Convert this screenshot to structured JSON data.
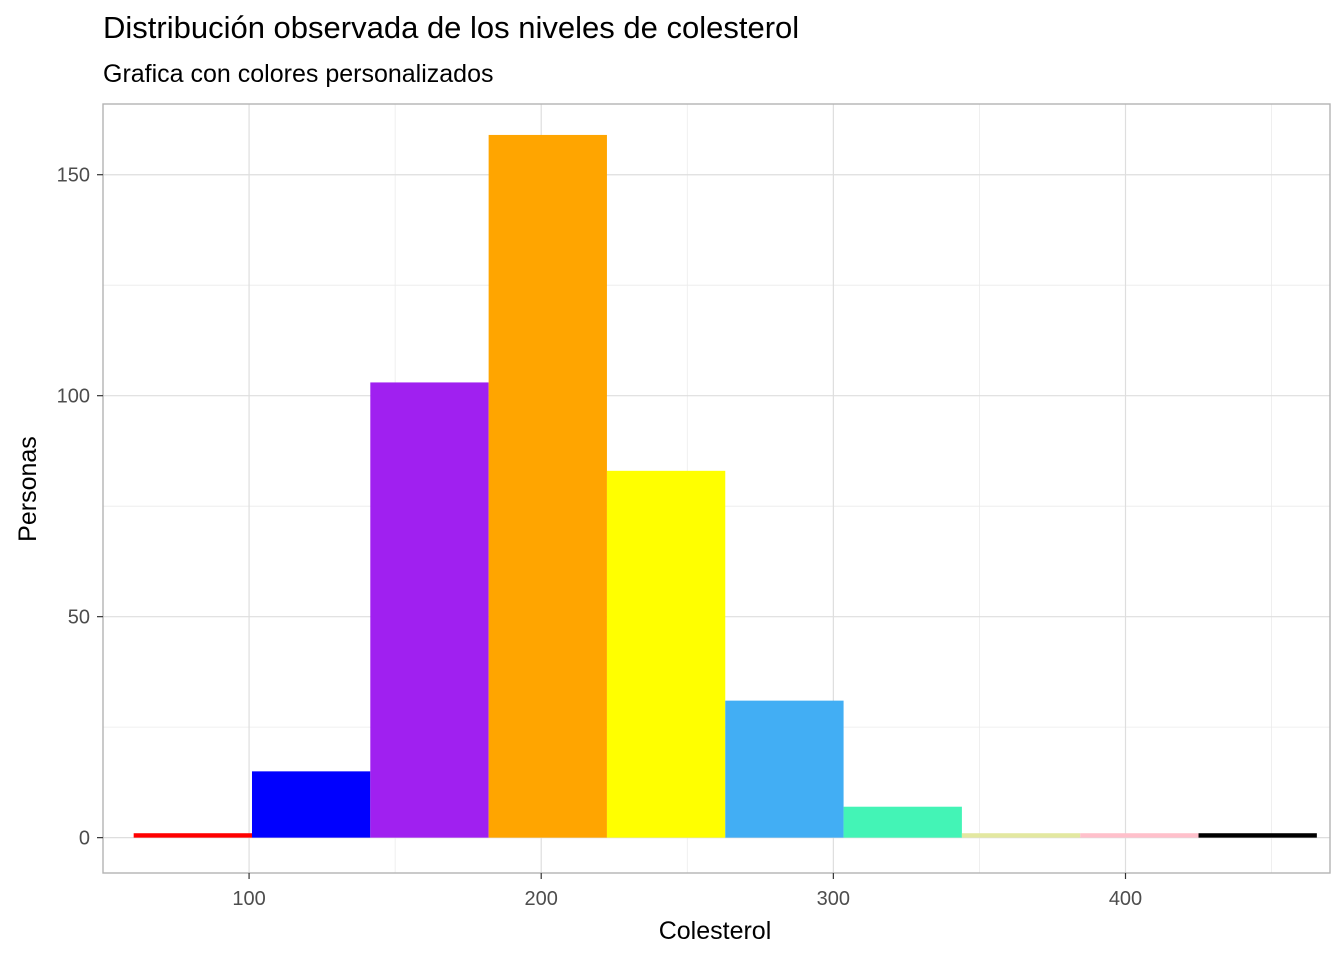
{
  "chart_data": {
    "type": "bar",
    "title": "Distribución observada de los niveles de colesterol",
    "subtitle": "Grafica con colores personalizados",
    "xlabel": "Colesterol",
    "ylabel": "Personas",
    "xlim": [
      50,
      470
    ],
    "ylim": [
      -8,
      166
    ],
    "x_ticks": [
      100,
      200,
      300,
      400
    ],
    "x_tick_labels": [
      "100",
      "200",
      "300",
      "400"
    ],
    "y_ticks": [
      0,
      50,
      100,
      150
    ],
    "y_tick_labels": [
      "0",
      "50",
      "100",
      "150"
    ],
    "x_minor_grid": [
      50,
      150,
      250,
      350,
      450
    ],
    "y_minor_grid": [
      25,
      75,
      125
    ],
    "grid": true,
    "bins": [
      {
        "x0": 60.5,
        "x1": 101,
        "value": 1,
        "color": "#FF0000"
      },
      {
        "x0": 101,
        "x1": 141.5,
        "value": 15,
        "color": "#0000FF"
      },
      {
        "x0": 141.5,
        "x1": 182,
        "value": 103,
        "color": "#A020F0"
      },
      {
        "x0": 182,
        "x1": 222.5,
        "value": 159,
        "color": "#FFA500"
      },
      {
        "x0": 222.5,
        "x1": 263,
        "value": 83,
        "color": "#FFFF00"
      },
      {
        "x0": 263,
        "x1": 303.5,
        "value": 31,
        "color": "#42AEF4"
      },
      {
        "x0": 303.5,
        "x1": 344,
        "value": 7,
        "color": "#43F4B6"
      },
      {
        "x0": 344,
        "x1": 384.5,
        "value": 1,
        "color": "#E3E8A0"
      },
      {
        "x0": 384.5,
        "x1": 425,
        "value": 1,
        "color": "#FFC0CB"
      },
      {
        "x0": 425,
        "x1": 465.5,
        "value": 1,
        "color": "#000000"
      }
    ]
  }
}
